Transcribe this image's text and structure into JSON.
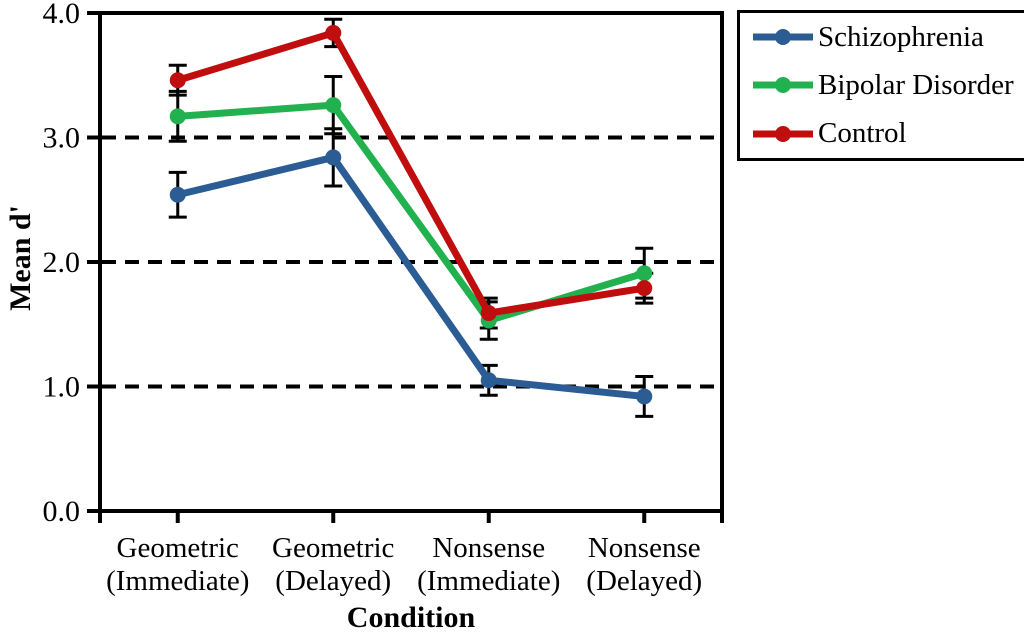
{
  "chart_data": {
    "type": "line",
    "title": "",
    "xlabel": "Condition",
    "ylabel": "Mean d'",
    "ylim": [
      0.0,
      4.0
    ],
    "yticks": {
      "values": [
        0,
        1,
        2,
        3,
        4
      ],
      "labels": [
        "0.0",
        "1.0",
        "2.0",
        "3.0",
        "4.0"
      ]
    },
    "gridlines": {
      "style": "dashed",
      "color": "#000000",
      "at": [
        1.0,
        2.0,
        3.0
      ]
    },
    "categories": [
      [
        "Geometric",
        "(Immediate)"
      ],
      [
        "Geometric",
        "(Delayed)"
      ],
      [
        "Nonsense",
        "(Immediate)"
      ],
      [
        "Nonsense",
        "(Delayed)"
      ]
    ],
    "legend_position": "outside-top-right",
    "marker": "circle",
    "error_bars": true,
    "series": [
      {
        "name": "Schizophrenia",
        "color": "#2B5C94",
        "values": [
          2.54,
          2.84,
          1.05,
          0.92
        ],
        "errors": [
          0.18,
          0.23,
          0.12,
          0.16
        ]
      },
      {
        "name": "Bipolar Disorder",
        "color": "#21B14E",
        "values": [
          3.17,
          3.26,
          1.53,
          1.91
        ],
        "errors": [
          0.2,
          0.23,
          0.15,
          0.2
        ]
      },
      {
        "name": "Control",
        "color": "#C00D0D",
        "values": [
          3.46,
          3.84,
          1.59,
          1.79
        ],
        "errors": [
          0.12,
          0.11,
          0.12,
          0.12
        ]
      }
    ]
  }
}
